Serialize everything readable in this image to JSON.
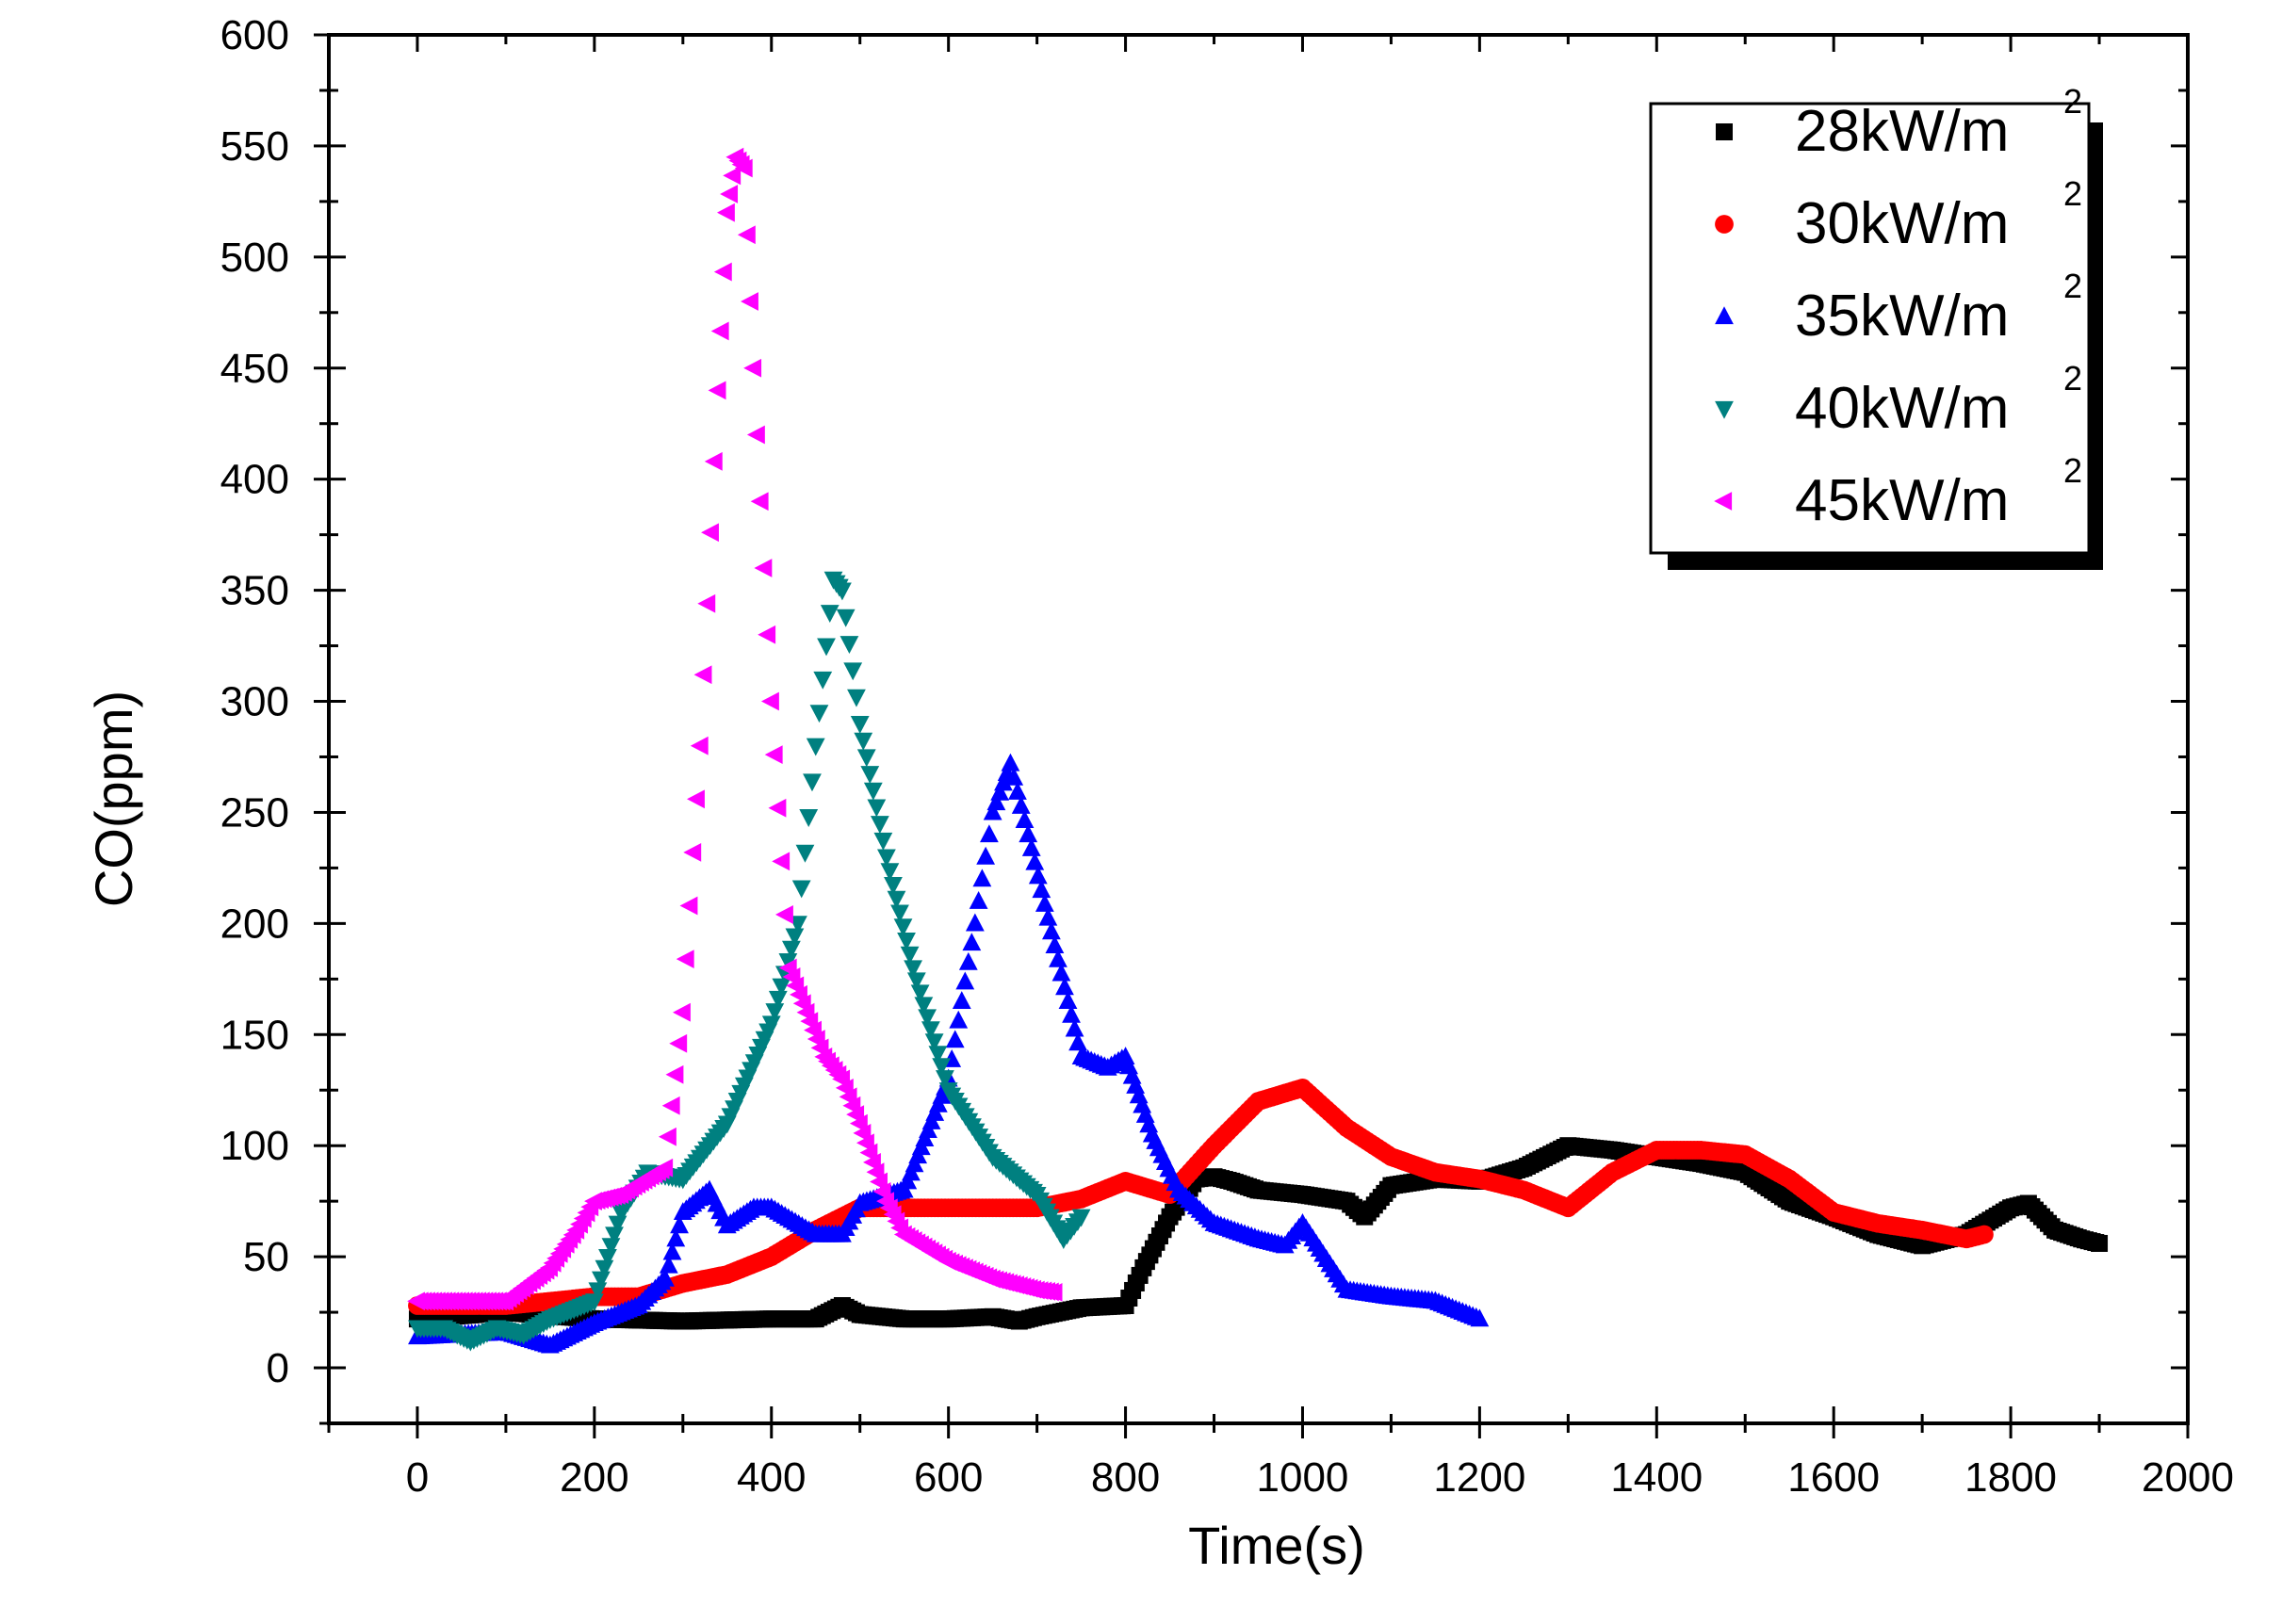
{
  "chart_data": {
    "type": "scatter",
    "title": "",
    "xlabel": "Time(s)",
    "ylabel": "CO(ppm)",
    "xlim": [
      -100,
      2000
    ],
    "ylim": [
      -25,
      600
    ],
    "xticks": [
      0,
      200,
      400,
      600,
      800,
      1000,
      1200,
      1400,
      1600,
      1800,
      2000
    ],
    "yticks": [
      0,
      50,
      100,
      150,
      200,
      250,
      300,
      350,
      400,
      450,
      500,
      550,
      600
    ],
    "x_tick_labels": [
      "0",
      "200",
      "400",
      "600",
      "800",
      "1000",
      "1200",
      "1400",
      "1600",
      "1800",
      "2000"
    ],
    "y_tick_labels": [
      "0",
      "50",
      "100",
      "150",
      "200",
      "250",
      "300",
      "350",
      "400",
      "450",
      "500",
      "550",
      "600"
    ],
    "grid": false,
    "legend_position": "top-right",
    "series": [
      {
        "name": "28kW/m",
        "superscript": "2",
        "marker": "square",
        "color": "#000000",
        "x": [
          0,
          100,
          200,
          300,
          400,
          450,
          480,
          500,
          550,
          600,
          650,
          680,
          700,
          750,
          800,
          820,
          850,
          880,
          900,
          920,
          950,
          1000,
          1050,
          1070,
          1100,
          1150,
          1200,
          1250,
          1300,
          1350,
          1400,
          1450,
          1500,
          1550,
          1600,
          1650,
          1700,
          1750,
          1800,
          1820,
          1850,
          1880,
          1900
        ],
        "y": [
          22,
          25,
          22,
          21,
          22,
          22,
          28,
          24,
          22,
          22,
          23,
          21,
          23,
          27,
          28,
          45,
          68,
          85,
          86,
          84,
          80,
          78,
          75,
          68,
          82,
          85,
          84,
          90,
          100,
          98,
          95,
          92,
          88,
          75,
          68,
          60,
          55,
          60,
          72,
          74,
          62,
          58,
          56
        ]
      },
      {
        "name": "30kW/m",
        "superscript": "2",
        "marker": "circle",
        "color": "#ff0000",
        "x": [
          0,
          100,
          200,
          250,
          300,
          350,
          400,
          450,
          500,
          550,
          600,
          650,
          700,
          750,
          800,
          850,
          900,
          950,
          1000,
          1050,
          1100,
          1150,
          1200,
          1250,
          1300,
          1350,
          1400,
          1450,
          1500,
          1550,
          1600,
          1650,
          1700,
          1750,
          1770
        ],
        "y": [
          28,
          28,
          32,
          32,
          38,
          42,
          50,
          62,
          72,
          72,
          72,
          72,
          72,
          76,
          84,
          78,
          100,
          120,
          126,
          108,
          95,
          88,
          85,
          80,
          72,
          88,
          98,
          98,
          96,
          85,
          70,
          65,
          62,
          58,
          60
        ]
      },
      {
        "name": "35kW/m",
        "superscript": "2",
        "marker": "triangle-up",
        "color": "#0000ff",
        "x": [
          0,
          50,
          100,
          150,
          200,
          250,
          280,
          300,
          330,
          350,
          380,
          400,
          450,
          480,
          500,
          550,
          600,
          630,
          650,
          670,
          690,
          720,
          750,
          780,
          800,
          830,
          860,
          900,
          950,
          980,
          1000,
          1050,
          1100,
          1150,
          1200
        ],
        "y": [
          14,
          15,
          16,
          10,
          20,
          28,
          40,
          70,
          80,
          64,
          72,
          72,
          60,
          60,
          74,
          80,
          130,
          200,
          250,
          272,
          240,
          190,
          140,
          135,
          140,
          105,
          80,
          65,
          58,
          55,
          65,
          35,
          32,
          30,
          22
        ]
      },
      {
        "name": "40kW/m",
        "superscript": "2",
        "marker": "triangle-down",
        "color": "#008080",
        "x": [
          0,
          30,
          60,
          90,
          120,
          150,
          200,
          230,
          260,
          300,
          350,
          400,
          430,
          450,
          470,
          480,
          500,
          530,
          560,
          600,
          650,
          700,
          730,
          750
        ],
        "y": [
          18,
          18,
          12,
          18,
          15,
          22,
          30,
          70,
          88,
          85,
          110,
          155,
          200,
          280,
          355,
          350,
          290,
          230,
          180,
          125,
          95,
          78,
          58,
          68
        ]
      },
      {
        "name": "45kW/m",
        "superscript": "2",
        "marker": "triangle-left",
        "color": "#ff00ff",
        "x": [
          0,
          50,
          100,
          150,
          180,
          200,
          230,
          280,
          300,
          320,
          340,
          350,
          360,
          370,
          380,
          400,
          420,
          440,
          460,
          480,
          500,
          530,
          550,
          600,
          650,
          700,
          720
        ],
        "y": [
          30,
          30,
          30,
          45,
          62,
          75,
          78,
          90,
          160,
          280,
          440,
          520,
          545,
          540,
          450,
          300,
          180,
          160,
          140,
          130,
          110,
          75,
          60,
          48,
          40,
          35,
          34
        ]
      }
    ]
  }
}
